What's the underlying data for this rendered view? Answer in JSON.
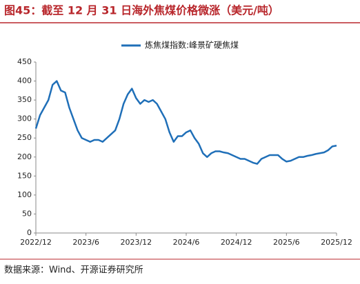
{
  "chart_data": {
    "type": "line",
    "title": "图45：截至 12 月 31 日海外焦煤价格微涨（美元/吨）",
    "source": "数据来源：Wind、开源证券研究所",
    "categories": [
      "2022/12",
      null,
      null,
      null,
      null,
      null,
      null,
      null,
      null,
      null,
      null,
      null,
      "2023/6",
      null,
      null,
      null,
      null,
      null,
      null,
      null,
      null,
      null,
      null,
      null,
      "2023/12",
      null,
      null,
      null,
      null,
      null,
      null,
      null,
      null,
      null,
      null,
      null,
      "2024/6",
      null,
      null,
      null,
      null,
      null,
      null,
      null,
      null,
      null,
      null,
      null,
      "2024/12",
      null,
      null,
      null,
      null,
      null,
      null,
      null,
      null,
      null,
      null,
      null,
      "2025/6",
      null,
      null,
      null,
      null,
      null,
      null,
      null,
      null,
      null,
      null,
      null,
      "2025/12"
    ],
    "series": [
      {
        "name": "炼焦煤指数:峰景矿硬焦煤",
        "color": "#1f6fb8",
        "values": [
          275,
          310,
          330,
          350,
          390,
          400,
          375,
          370,
          330,
          300,
          270,
          250,
          245,
          240,
          245,
          245,
          240,
          250,
          260,
          270,
          300,
          340,
          365,
          380,
          355,
          340,
          350,
          345,
          350,
          340,
          320,
          300,
          265,
          240,
          255,
          255,
          265,
          270,
          250,
          235,
          210,
          200,
          210,
          215,
          215,
          212,
          210,
          205,
          200,
          195,
          195,
          190,
          185,
          182,
          195,
          200,
          205,
          205,
          205,
          195,
          188,
          190,
          195,
          200,
          200,
          203,
          205,
          208,
          210,
          212,
          218,
          228,
          230
        ]
      }
    ],
    "ylim": [
      0,
      450
    ],
    "yticks": [
      0,
      50,
      100,
      150,
      200,
      250,
      300,
      350,
      400,
      450
    ],
    "grid": false,
    "legend": "top"
  }
}
